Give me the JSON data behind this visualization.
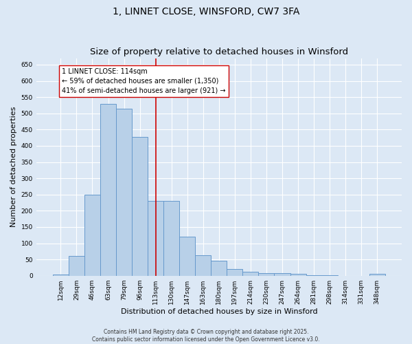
{
  "title": "1, LINNET CLOSE, WINSFORD, CW7 3FA",
  "subtitle": "Size of property relative to detached houses in Winsford",
  "xlabel": "Distribution of detached houses by size in Winsford",
  "ylabel": "Number of detached properties",
  "categories": [
    "12sqm",
    "29sqm",
    "46sqm",
    "63sqm",
    "79sqm",
    "96sqm",
    "113sqm",
    "130sqm",
    "147sqm",
    "163sqm",
    "180sqm",
    "197sqm",
    "214sqm",
    "230sqm",
    "247sqm",
    "264sqm",
    "281sqm",
    "298sqm",
    "314sqm",
    "331sqm",
    "348sqm"
  ],
  "values": [
    4,
    60,
    250,
    530,
    515,
    427,
    230,
    230,
    120,
    63,
    47,
    20,
    12,
    8,
    7,
    5,
    2,
    1,
    0,
    0,
    5
  ],
  "bar_color": "#b8d0e8",
  "bar_edge_color": "#6699cc",
  "background_color": "#dce8f5",
  "vline_color": "#cc0000",
  "annotation_text": "1 LINNET CLOSE: 114sqm\n← 59% of detached houses are smaller (1,350)\n41% of semi-detached houses are larger (921) →",
  "annotation_box_color": "#ffffff",
  "annotation_box_edge_color": "#cc0000",
  "ylim": [
    0,
    670
  ],
  "yticks": [
    0,
    50,
    100,
    150,
    200,
    250,
    300,
    350,
    400,
    450,
    500,
    550,
    600,
    650
  ],
  "footer": "Contains HM Land Registry data © Crown copyright and database right 2025.\nContains public sector information licensed under the Open Government Licence v3.0.",
  "title_fontsize": 10,
  "subtitle_fontsize": 9.5,
  "xlabel_fontsize": 8,
  "ylabel_fontsize": 8,
  "tick_fontsize": 6.5,
  "annotation_fontsize": 7,
  "footer_fontsize": 5.5,
  "vline_pos": 6.0
}
